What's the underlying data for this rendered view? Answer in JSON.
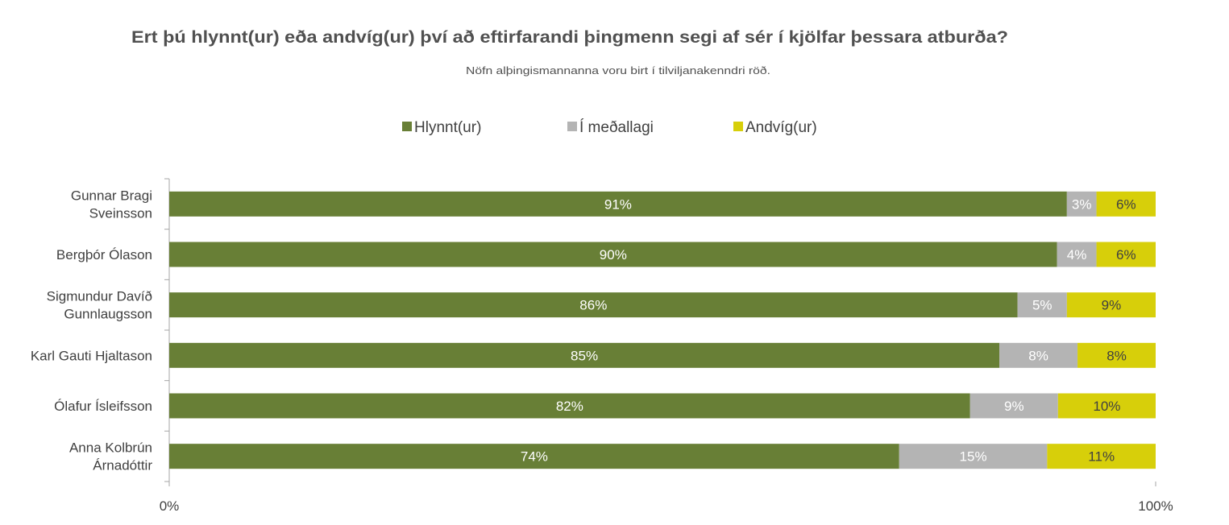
{
  "chart_data": {
    "type": "bar",
    "orientation": "horizontal",
    "stacked": "percent",
    "title": "Ert þú hlynnt(ur) eða andvíg(ur) því að eftirfarandi þingmenn segi af sér í kjölfar þessara atburða?",
    "subtitle": "Nöfn alþingismannanna voru birt í tilviljanakenndri röð.",
    "xlabel": "",
    "ylabel": "",
    "xlim": [
      0,
      100
    ],
    "x_ticks": [
      "0%",
      "100%"
    ],
    "legend_position": "top",
    "categories": [
      [
        "Gunnar Bragi",
        "Sveinsson"
      ],
      [
        "Bergþór Ólason"
      ],
      [
        "Sigmundur Davíð",
        "Gunnlaugsson"
      ],
      [
        "Karl Gauti Hjaltason"
      ],
      [
        "Ólafur Ísleifsson"
      ],
      [
        "Anna Kolbrún",
        "Árnadóttir"
      ]
    ],
    "series": [
      {
        "name": "Hlynnt(ur)",
        "color": "#687f36",
        "label_color": "#ffffff",
        "values": [
          91,
          90,
          86,
          85,
          82,
          74
        ]
      },
      {
        "name": "Í meðallagi",
        "color": "#b4b4b4",
        "label_color": "#ffffff",
        "values": [
          3,
          4,
          5,
          8,
          9,
          15
        ]
      },
      {
        "name": "Andvíg(ur)",
        "color": "#d7cf0a",
        "label_color": "#404040",
        "values": [
          6,
          6,
          9,
          8,
          10,
          11
        ]
      }
    ]
  }
}
